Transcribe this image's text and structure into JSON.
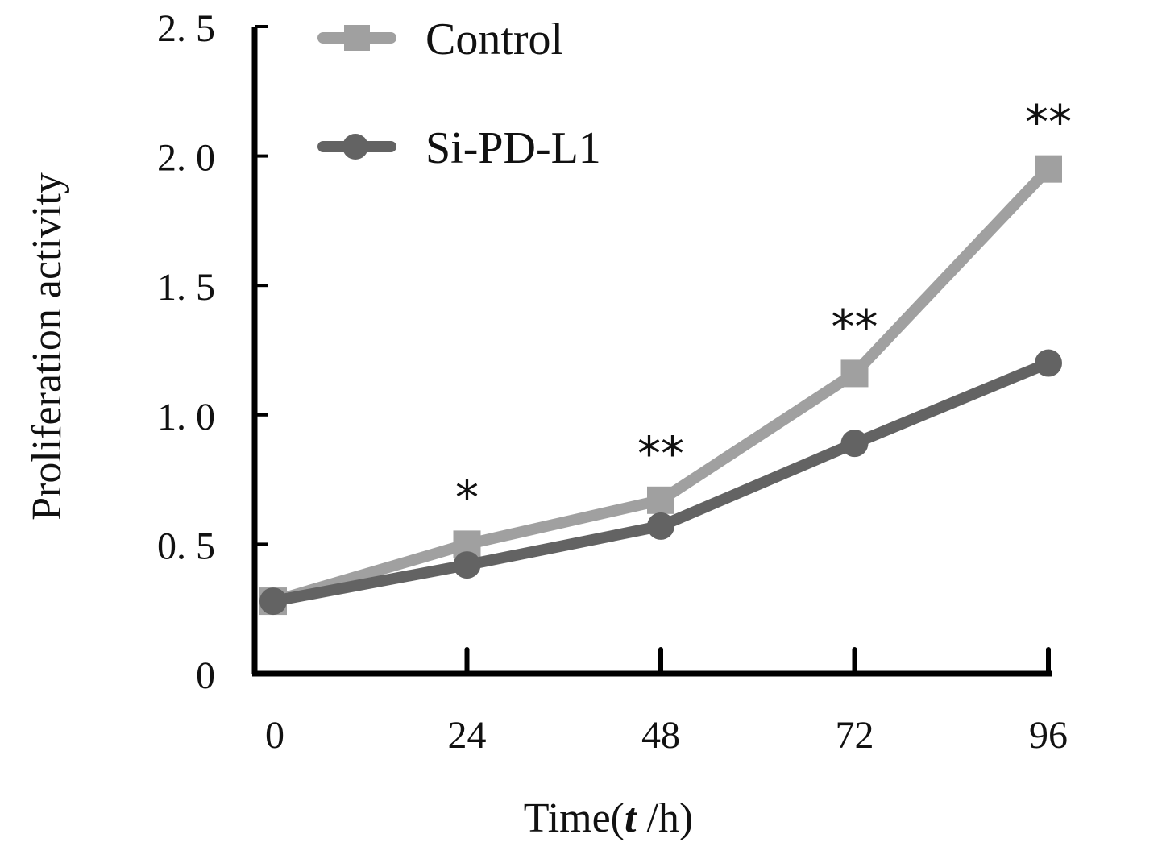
{
  "chart_data": {
    "type": "line",
    "title": "",
    "xlabel": "Time(",
    "xlabel_italic": "t",
    "xlabel_suffix": " /h)",
    "ylabel": "Proliferation activity",
    "x": [
      0,
      24,
      48,
      72,
      96
    ],
    "x_tick_labels": [
      "0",
      "24",
      "48",
      "72",
      "96"
    ],
    "y_ticks": [
      0,
      0.5,
      1.0,
      1.5,
      2.0,
      2.5
    ],
    "y_tick_labels": [
      "0",
      "0. 5",
      "1. 0",
      "1. 5",
      "2. 0",
      "2. 5"
    ],
    "ylim": [
      0,
      2.5
    ],
    "grid": false,
    "legend_position": "top-left",
    "series": [
      {
        "name": "Control",
        "marker": "square",
        "color": "#a0a0a0",
        "values": [
          0.28,
          0.5,
          0.67,
          1.16,
          1.95
        ]
      },
      {
        "name": "Si-PD-L1",
        "marker": "circle",
        "color": "#636363",
        "values": [
          0.28,
          0.42,
          0.57,
          0.89,
          1.2
        ]
      }
    ],
    "annotations": [
      {
        "x": 24,
        "text": "*"
      },
      {
        "x": 48,
        "text": "**"
      },
      {
        "x": 72,
        "text": "**"
      },
      {
        "x": 96,
        "text": "**"
      }
    ]
  }
}
